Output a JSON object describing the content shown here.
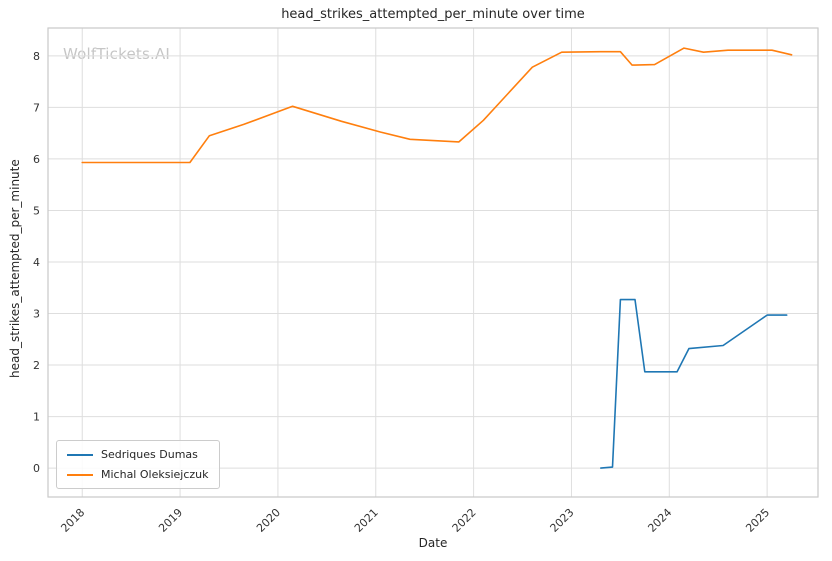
{
  "chart_data": {
    "type": "line",
    "title": "head_strikes_attempted_per_minute over time",
    "watermark": "WolfTickets.AI",
    "xlabel": "Date",
    "ylabel": "head_strikes_attempted_per_minute",
    "xlim": [
      2017.65,
      2025.52
    ],
    "ylim": [
      -0.56,
      8.54
    ],
    "xticks": [
      2018,
      2019,
      2020,
      2021,
      2022,
      2023,
      2024,
      2025
    ],
    "yticks": [
      0,
      1,
      2,
      3,
      4,
      5,
      6,
      7,
      8
    ],
    "grid": true,
    "grid_color": "#dedede",
    "frame_color": "#c9c9c9",
    "legend_position": "lower left",
    "series": [
      {
        "name": "Sedriques Dumas",
        "color": "#1f77b4",
        "points": [
          [
            2023.3,
            0.0
          ],
          [
            2023.42,
            0.02
          ],
          [
            2023.5,
            3.27
          ],
          [
            2023.65,
            3.27
          ],
          [
            2023.75,
            1.87
          ],
          [
            2024.08,
            1.87
          ],
          [
            2024.2,
            2.32
          ],
          [
            2024.55,
            2.38
          ],
          [
            2025.0,
            2.97
          ],
          [
            2025.2,
            2.97
          ]
        ]
      },
      {
        "name": "Michal Oleksiejczuk",
        "color": "#ff7f0e",
        "points": [
          [
            2018.0,
            5.93
          ],
          [
            2019.1,
            5.93
          ],
          [
            2019.3,
            6.45
          ],
          [
            2019.65,
            6.67
          ],
          [
            2020.15,
            7.02
          ],
          [
            2020.65,
            6.73
          ],
          [
            2021.05,
            6.52
          ],
          [
            2021.35,
            6.38
          ],
          [
            2021.85,
            6.33
          ],
          [
            2022.1,
            6.75
          ],
          [
            2022.6,
            7.78
          ],
          [
            2022.9,
            8.07
          ],
          [
            2023.3,
            8.08
          ],
          [
            2023.5,
            8.08
          ],
          [
            2023.62,
            7.82
          ],
          [
            2023.85,
            7.83
          ],
          [
            2024.15,
            8.15
          ],
          [
            2024.35,
            8.07
          ],
          [
            2024.6,
            8.11
          ],
          [
            2025.05,
            8.11
          ],
          [
            2025.25,
            8.02
          ]
        ]
      }
    ]
  }
}
